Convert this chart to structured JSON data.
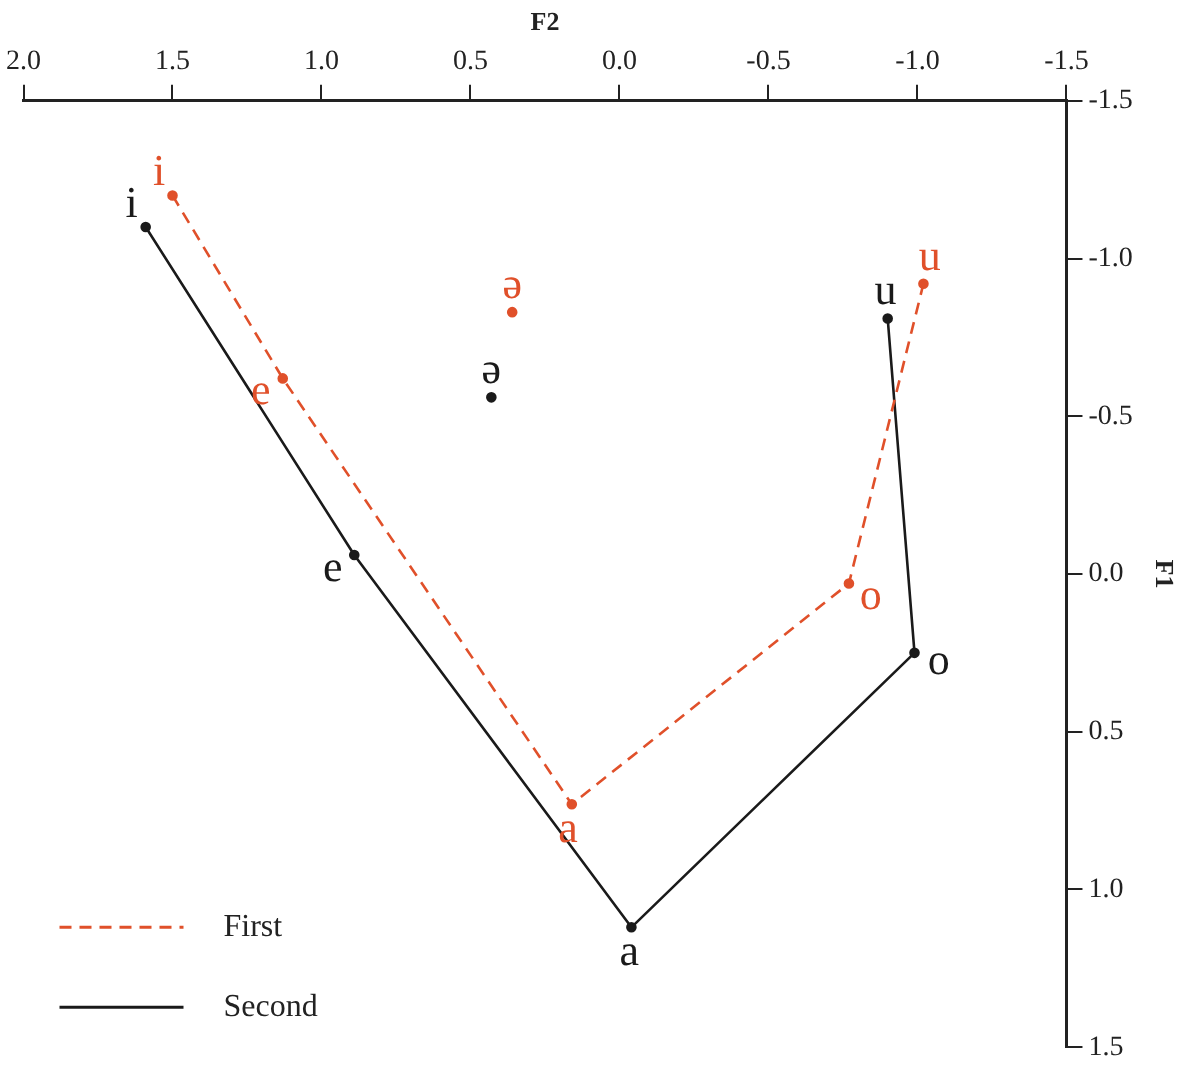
{
  "chart_data": {
    "type": "line",
    "xlabel": "F2",
    "ylabel": "F1",
    "xlim": [
      2.0,
      -1.5
    ],
    "xticks": [
      {
        "value": 2,
        "label": "2.0"
      },
      1.5,
      {
        "value": 1,
        "label": "1.0"
      },
      0.5,
      {
        "value": 0,
        "label": "0.0"
      },
      -0.5,
      {
        "value": -1,
        "label": "-1.0"
      },
      -1.5
    ],
    "ylim": [
      1.5,
      -1.5
    ],
    "yticks": [
      -1.5,
      {
        "value": -1,
        "label": "-1.0"
      },
      -0.5,
      {
        "value": 0,
        "label": "0.0"
      },
      0.5,
      {
        "value": 1,
        "label": "1.0"
      },
      1.5
    ],
    "grid": false,
    "legend": "bottom left",
    "marker": "circle",
    "series": [
      {
        "name": "First",
        "type": "line",
        "line_style": "dashed",
        "color": "#e0502a",
        "x": [
          1.5,
          1.13,
          0.16,
          -0.77,
          -1.02
        ],
        "values": [
          -1.2,
          -0.62,
          0.73,
          0.03,
          -0.92
        ],
        "value_labels": [
          "i",
          "e",
          "a",
          "o",
          "u"
        ]
      },
      {
        "name": "Second",
        "type": "line",
        "line_style": "solid",
        "color": "#1a1a1a",
        "x": [
          1.59,
          0.89,
          -0.04,
          -0.99,
          -0.9
        ],
        "values": [
          -1.1,
          -0.06,
          1.12,
          0.25,
          -0.81
        ],
        "value_labels": [
          "i",
          "e",
          "a",
          "o",
          "u"
        ]
      },
      {
        "type": "scatter",
        "color": "#e0502a",
        "x": [
          0.36
        ],
        "values": [
          -0.83
        ],
        "value_labels": [
          "ə"
        ]
      },
      {
        "type": "scatter",
        "color": "#1a1a1a",
        "x": [
          0.43
        ],
        "values": [
          -0.56
        ],
        "value_labels": [
          "ə"
        ]
      }
    ]
  }
}
